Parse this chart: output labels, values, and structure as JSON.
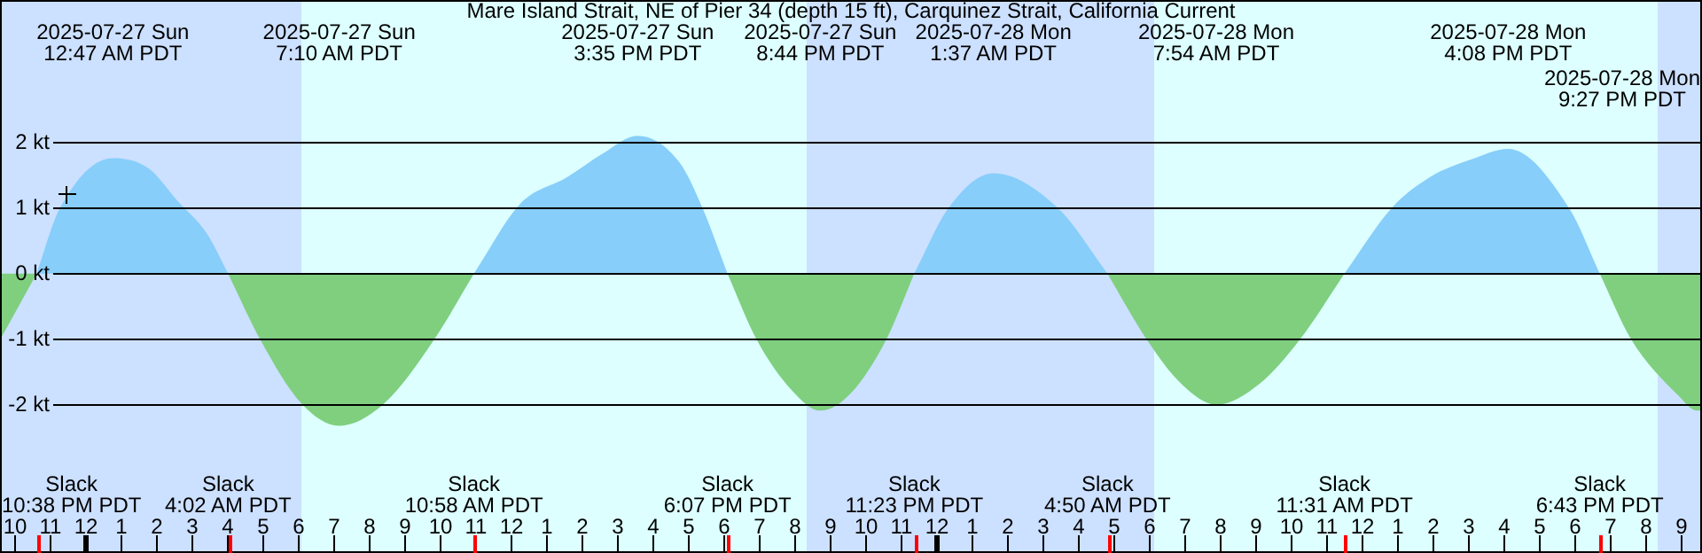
{
  "chart_data": {
    "type": "area",
    "title": "Mare Island Strait, NE of Pier 34 (depth 15 ft), Carquinez Strait, California Current",
    "series": [
      {
        "color": "#87cefa",
        "x": [
          "2025-07-26T22:38",
          "2025-07-26T23:16",
          "2025-07-27T00:47",
          "2025-07-27T01:48",
          "2025-07-27T02:36",
          "2025-07-27T03:26",
          "2025-07-27T04:02",
          "2025-07-27T07:00",
          "2025-07-27T10:58",
          "2025-07-27T12:16",
          "2025-07-27T13:36",
          "2025-07-27T14:36",
          "2025-07-27T15:35",
          "2025-07-27T16:46",
          "2025-07-27T17:26",
          "2025-07-27T18:07",
          "2025-07-27T21:00",
          "2025-07-27T23:23",
          "2025-07-28T00:21",
          "2025-07-28T01:37",
          "2025-07-28T03:26",
          "2025-07-28T04:50",
          "2025-07-28T08:00",
          "2025-07-28T11:31",
          "2025-07-28T12:51",
          "2025-07-28T13:56",
          "2025-07-28T15:06",
          "2025-07-28T16:08",
          "2025-07-28T17:51",
          "2025-07-28T18:43"
        ],
        "values": [
          0,
          0.97,
          1.76,
          1.6,
          1.11,
          0.61,
          0,
          null,
          0,
          1.06,
          1.47,
          1.83,
          2.1,
          1.69,
          0.97,
          0,
          null,
          0,
          1.0,
          1.53,
          1.0,
          0,
          null,
          0,
          1.0,
          1.47,
          1.74,
          1.9,
          1.0,
          0
        ]
      },
      {
        "color": "#7fcf7f",
        "x": [
          "2025-07-26T21:36",
          "2025-07-26T22:38",
          "2025-07-27T02:00",
          "2025-07-27T04:02",
          "2025-07-27T04:56",
          "2025-07-27T06:06",
          "2025-07-27T07:10",
          "2025-07-27T08:26",
          "2025-07-27T09:51",
          "2025-07-27T10:58",
          "2025-07-27T14:00",
          "2025-07-27T18:07",
          "2025-07-27T18:56",
          "2025-07-27T19:56",
          "2025-07-27T20:44",
          "2025-07-27T21:36",
          "2025-07-27T22:36",
          "2025-07-27T23:23",
          "2025-07-28T02:00",
          "2025-07-28T04:50",
          "2025-07-28T05:56",
          "2025-07-28T06:56",
          "2025-07-28T07:54",
          "2025-07-28T09:06",
          "2025-07-28T10:16",
          "2025-07-28T11:31",
          "2025-07-28T15:00",
          "2025-07-28T18:43",
          "2025-07-28T19:36",
          "2025-07-28T20:56",
          "2025-07-28T21:27",
          "2025-07-28T21:36"
        ],
        "values": [
          -1.01,
          0,
          null,
          0,
          -1.0,
          -1.98,
          -2.32,
          -1.98,
          -1.0,
          0,
          null,
          0,
          -1.0,
          -1.78,
          -2.09,
          -1.82,
          -1.0,
          0,
          null,
          0,
          -1.0,
          -1.69,
          -2.0,
          -1.69,
          -1.0,
          0,
          null,
          0,
          -1.0,
          -1.86,
          -2.09,
          -2.08
        ]
      }
    ],
    "xticks": [
      {
        "value": "2025-07-26T22:00",
        "label": "10"
      },
      {
        "value": "2025-07-26T23:00",
        "label": "11"
      },
      {
        "value": "2025-07-27T00:00",
        "label": "12"
      },
      {
        "value": "2025-07-27T01:00",
        "label": "1"
      },
      {
        "value": "2025-07-27T02:00",
        "label": "2"
      },
      {
        "value": "2025-07-27T03:00",
        "label": "3"
      },
      {
        "value": "2025-07-27T04:00",
        "label": "4"
      },
      {
        "value": "2025-07-27T05:00",
        "label": "5"
      },
      {
        "value": "2025-07-27T06:00",
        "label": "6"
      },
      {
        "value": "2025-07-27T07:00",
        "label": "7"
      },
      {
        "value": "2025-07-27T08:00",
        "label": "8"
      },
      {
        "value": "2025-07-27T09:00",
        "label": "9"
      },
      {
        "value": "2025-07-27T10:00",
        "label": "10"
      },
      {
        "value": "2025-07-27T11:00",
        "label": "11"
      },
      {
        "value": "2025-07-27T12:00",
        "label": "12"
      },
      {
        "value": "2025-07-27T13:00",
        "label": "1"
      },
      {
        "value": "2025-07-27T14:00",
        "label": "2"
      },
      {
        "value": "2025-07-27T15:00",
        "label": "3"
      },
      {
        "value": "2025-07-27T16:00",
        "label": "4"
      },
      {
        "value": "2025-07-27T17:00",
        "label": "5"
      },
      {
        "value": "2025-07-27T18:00",
        "label": "6"
      },
      {
        "value": "2025-07-27T19:00",
        "label": "7"
      },
      {
        "value": "2025-07-27T20:00",
        "label": "8"
      },
      {
        "value": "2025-07-27T21:00",
        "label": "9"
      },
      {
        "value": "2025-07-27T22:00",
        "label": "10"
      },
      {
        "value": "2025-07-27T23:00",
        "label": "11"
      },
      {
        "value": "2025-07-28T00:00",
        "label": "12"
      },
      {
        "value": "2025-07-28T01:00",
        "label": "1"
      },
      {
        "value": "2025-07-28T02:00",
        "label": "2"
      },
      {
        "value": "2025-07-28T03:00",
        "label": "3"
      },
      {
        "value": "2025-07-28T04:00",
        "label": "4"
      },
      {
        "value": "2025-07-28T05:00",
        "label": "5"
      },
      {
        "value": "2025-07-28T06:00",
        "label": "6"
      },
      {
        "value": "2025-07-28T07:00",
        "label": "7"
      },
      {
        "value": "2025-07-28T08:00",
        "label": "8"
      },
      {
        "value": "2025-07-28T09:00",
        "label": "9"
      },
      {
        "value": "2025-07-28T10:00",
        "label": "10"
      },
      {
        "value": "2025-07-28T11:00",
        "label": "11"
      },
      {
        "value": "2025-07-28T12:00",
        "label": "12"
      },
      {
        "value": "2025-07-28T13:00",
        "label": "1"
      },
      {
        "value": "2025-07-28T14:00",
        "label": "2"
      },
      {
        "value": "2025-07-28T15:00",
        "label": "3"
      },
      {
        "value": "2025-07-28T16:00",
        "label": "4"
      },
      {
        "value": "2025-07-28T17:00",
        "label": "5"
      },
      {
        "value": "2025-07-28T18:00",
        "label": "6"
      },
      {
        "value": "2025-07-28T19:00",
        "label": "7"
      },
      {
        "value": "2025-07-28T20:00",
        "label": "8"
      },
      {
        "value": "2025-07-28T21:00",
        "label": "9"
      }
    ],
    "xlim": [
      "2025-07-26T21:36",
      "2025-07-28T21:36"
    ],
    "ylim": [
      -4.26,
      4.17
    ],
    "yticks": [
      {
        "value": -2,
        "label": "-2 kt"
      },
      {
        "value": -1,
        "label": "-1 kt"
      },
      {
        "value": 0,
        "label": "0 kt"
      },
      {
        "value": 1,
        "label": "1 kt"
      },
      {
        "value": 2,
        "label": "2 kt"
      }
    ],
    "grid": "y",
    "bands": [
      {
        "axis": "x",
        "from": "2025-07-26T21:36",
        "to": "2025-07-27T06:06",
        "color": "#cce0ff"
      },
      {
        "axis": "x",
        "from": "2025-07-27T06:06",
        "to": "2025-07-27T20:21",
        "color": "#ddffff"
      },
      {
        "axis": "x",
        "from": "2025-07-27T20:21",
        "to": "2025-07-28T06:09",
        "color": "#cce0ff"
      },
      {
        "axis": "x",
        "from": "2025-07-28T06:09",
        "to": "2025-07-28T20:21",
        "color": "#ddffff"
      },
      {
        "axis": "x",
        "from": "2025-07-28T20:21",
        "to": "2025-07-28T21:36",
        "color": "#cce0ff"
      }
    ],
    "annotations": [
      "2025-07-27 Sun\n12:47 AM PDT",
      "2025-07-27 Sun\n7:10 AM PDT",
      "2025-07-27 Sun\n3:35 PM PDT",
      "2025-07-27 Sun\n8:44 PM PDT",
      "2025-07-28 Mon\n1:37 AM PDT",
      "2025-07-28 Mon\n7:54 AM PDT",
      "2025-07-28 Mon\n4:08 PM PDT",
      "2025-07-28 Mon\n9:27 PM PDT",
      "Slack\n10:38 PM PDT",
      "Slack\n4:02 AM PDT",
      "Slack\n10:58 AM PDT",
      "Slack\n6:07 PM PDT",
      "Slack\n11:23 PM PDT",
      "Slack\n4:50 AM PDT",
      "Slack\n11:31 AM PDT",
      "Slack\n6:43 PM PDT"
    ]
  }
}
